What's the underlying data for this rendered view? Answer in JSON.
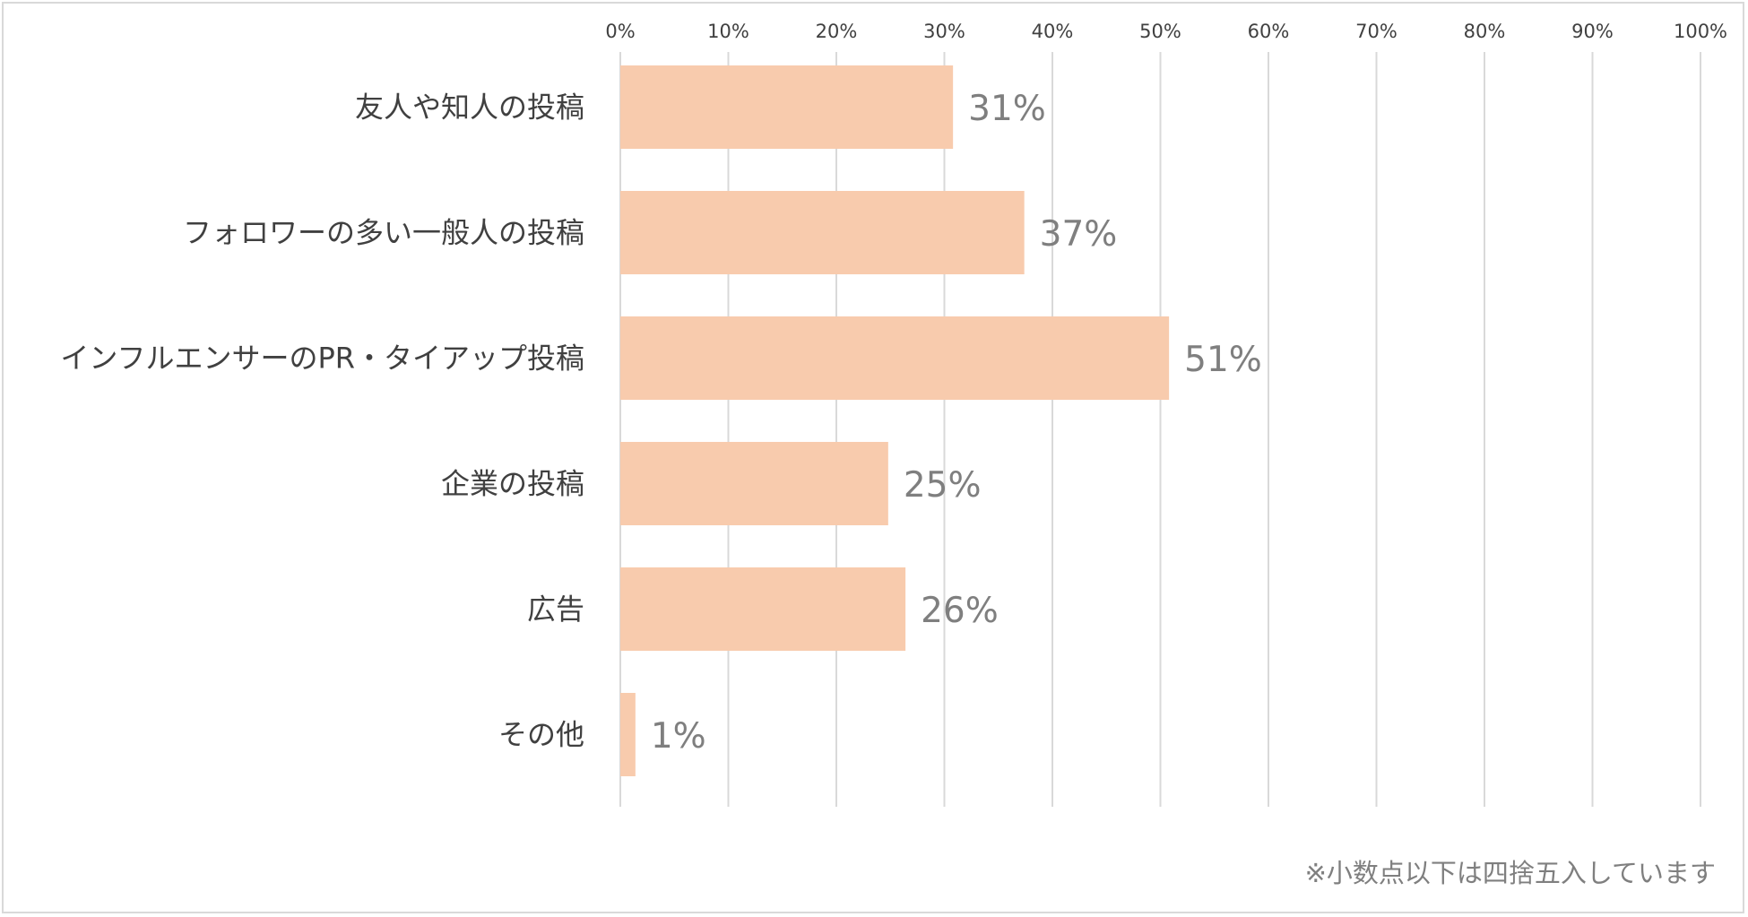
{
  "chart_data": {
    "type": "bar",
    "orientation": "horizontal",
    "title": "",
    "xlabel": "",
    "ylabel": "",
    "xlim": [
      0,
      100
    ],
    "x_ticks": [
      0,
      10,
      20,
      30,
      40,
      50,
      60,
      70,
      80,
      90,
      100
    ],
    "tick_suffix": "%",
    "grid": true,
    "categories": [
      "友人や知人の投稿",
      "フォロワーの多い一般人の投稿",
      "インフルエンサーのPR・タイアップ投稿",
      "企業の投稿",
      "広告",
      "その他"
    ],
    "values": [
      31,
      37,
      51,
      25,
      26,
      1
    ],
    "exact_values": [
      30.8,
      37.4,
      50.8,
      24.8,
      26.4,
      1.4
    ],
    "value_labels": [
      "31%",
      "37%",
      "51%",
      "25%",
      "26%",
      "1%"
    ],
    "bar_color": "#f8cbad",
    "grid_color": "#d9d9d9",
    "note": "※小数点以下は四捨五入しています"
  }
}
